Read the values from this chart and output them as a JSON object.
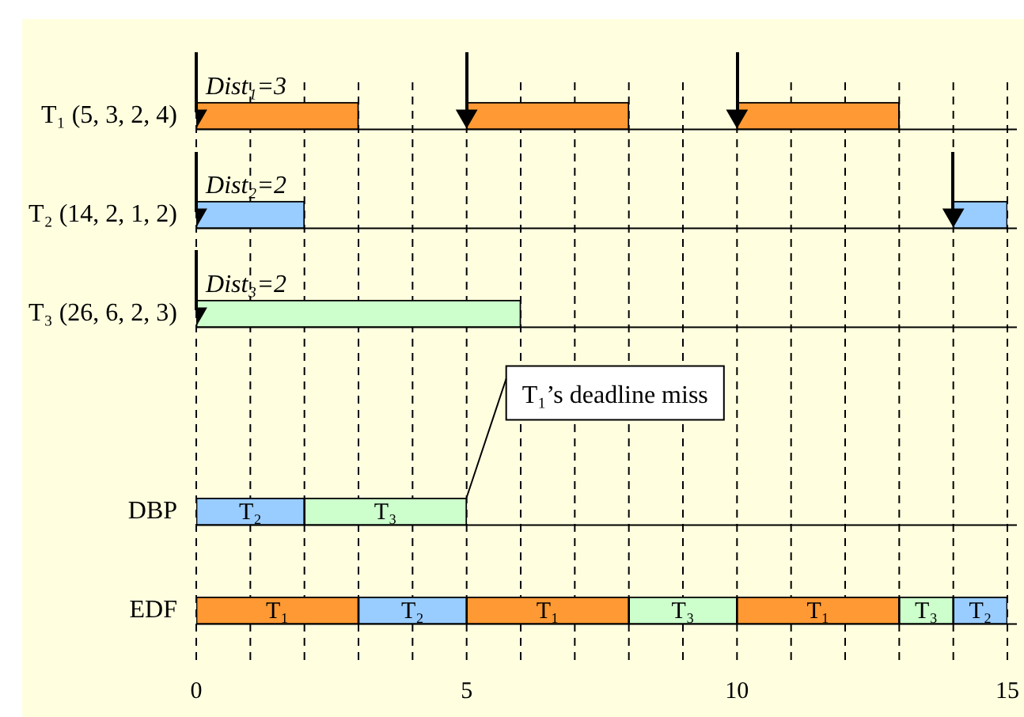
{
  "chart_data": {
    "type": "bar",
    "orientation": "horizontal",
    "grid": "x",
    "legend": false,
    "categories": [
      "T₁ (5, 3, 2, 4)",
      "T₂ (14, 2, 1, 2)",
      "T₃ (26, 6, 2, 3)",
      null,
      "DBP",
      "EDF"
    ],
    "xlim": [
      0,
      15
    ],
    "xticks": [
      0,
      {
        "value": 1,
        "label": null
      },
      {
        "value": 2,
        "label": null
      },
      {
        "value": 3,
        "label": null
      },
      {
        "value": 4,
        "label": null
      },
      5,
      {
        "value": 6,
        "label": null
      },
      {
        "value": 7,
        "label": null
      },
      {
        "value": 8,
        "label": null
      },
      {
        "value": 9,
        "label": null
      },
      10,
      {
        "value": 11,
        "label": null
      },
      {
        "value": 12,
        "label": null
      },
      {
        "value": 13,
        "label": null
      },
      {
        "value": 14,
        "label": null
      },
      15
    ],
    "series": [
      {
        "values": [
          3,
          2,
          6,
          null,
          2,
          3
        ],
        "base": [
          0,
          0,
          0,
          null,
          0,
          0
        ],
        "colors": [
          "#ff9933",
          "#99ccff",
          "#ccffcc",
          null,
          "#99ccff",
          "#ff9933"
        ],
        "value_labels": [
          null,
          null,
          null,
          null,
          "T₂",
          "T₁"
        ]
      },
      {
        "values": [
          3,
          1,
          null,
          null,
          3,
          2
        ],
        "base": [
          5,
          14,
          null,
          null,
          2,
          3
        ],
        "colors": [
          "#ff9933",
          "#99ccff",
          null,
          null,
          "#ccffcc",
          "#99ccff"
        ],
        "value_labels": [
          null,
          null,
          null,
          null,
          "T₃",
          "T₂"
        ]
      },
      {
        "values": [
          3,
          null,
          null,
          null,
          null,
          3
        ],
        "base": [
          10,
          null,
          null,
          null,
          null,
          5
        ],
        "colors": [
          "#ff9933",
          null,
          null,
          null,
          null,
          "#ff9933"
        ],
        "value_labels": [
          null,
          null,
          null,
          null,
          null,
          "T₁"
        ]
      },
      {
        "values": [
          null,
          null,
          null,
          null,
          null,
          2
        ],
        "base": [
          null,
          null,
          null,
          null,
          null,
          8
        ],
        "colors": [
          null,
          null,
          null,
          null,
          null,
          "#ccffcc"
        ],
        "value_labels": [
          null,
          null,
          null,
          null,
          null,
          "T₃"
        ]
      },
      {
        "values": [
          null,
          null,
          null,
          null,
          null,
          3
        ],
        "base": [
          null,
          null,
          null,
          null,
          null,
          10
        ],
        "colors": [
          null,
          null,
          null,
          null,
          null,
          "#ff9933"
        ],
        "value_labels": [
          null,
          null,
          null,
          null,
          null,
          "T₁"
        ]
      },
      {
        "values": [
          null,
          null,
          null,
          null,
          null,
          1
        ],
        "base": [
          null,
          null,
          null,
          null,
          null,
          13
        ],
        "colors": [
          null,
          null,
          null,
          null,
          null,
          "#ccffcc"
        ],
        "value_labels": [
          null,
          null,
          null,
          null,
          null,
          "T₃"
        ]
      },
      {
        "values": [
          null,
          null,
          null,
          null,
          null,
          1
        ],
        "base": [
          null,
          null,
          null,
          null,
          null,
          14
        ],
        "colors": [
          null,
          null,
          null,
          null,
          null,
          "#99ccff"
        ],
        "value_labels": [
          null,
          null,
          null,
          null,
          null,
          "T₂"
        ]
      },
      {
        "type": "scatter",
        "marker": "triangle",
        "color": "#000000",
        "x": [
          "T₁ (5, 3, 2, 4)",
          "T₁ (5, 3, 2, 4)",
          "T₁ (5, 3, 2, 4)",
          "T₂ (14, 2, 1, 2)",
          "T₂ (14, 2, 1, 2)",
          "T₃ (26, 6, 2, 3)"
        ],
        "values": [
          0,
          5,
          10,
          0,
          14,
          0
        ]
      }
    ],
    "annotations": [
      "Dist₁=3",
      "Dist₂=2",
      "Dist₃=2",
      {
        "text": "T₁’s deadline miss",
        "x": 5,
        "y": "DBP"
      }
    ]
  }
}
